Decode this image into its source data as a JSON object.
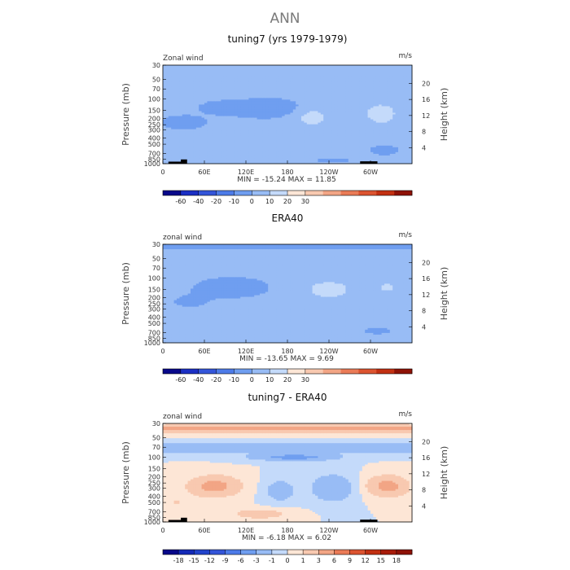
{
  "figure_title": "ANN",
  "chart_data": [
    {
      "type": "heatmap",
      "title": "tuning7 (yrs 1979-1979)",
      "variable_label": "Zonal wind",
      "units": "m/s",
      "xlabel": "",
      "ylabel": "Pressure (mb)",
      "y2label": "Height (km)",
      "xlim": [
        0,
        360
      ],
      "x_ticks": [
        "0",
        "60E",
        "120E",
        "180",
        "120W",
        "60W"
      ],
      "y_ticks": [
        "30",
        "50",
        "70",
        "100",
        "150",
        "200",
        "250",
        "300",
        "400",
        "500",
        "700",
        "850",
        "1000"
      ],
      "y_tick_values": [
        30,
        50,
        70,
        100,
        150,
        200,
        250,
        300,
        400,
        500,
        700,
        850,
        1000
      ],
      "height_ticks": [
        "4",
        "8",
        "12",
        "16",
        "20"
      ],
      "height_tick_values": [
        4,
        8,
        12,
        16,
        20
      ],
      "stats": "MIN = -15.24   MAX =  11.85",
      "min": -15.24,
      "max": 11.85,
      "colorbar_labels": [
        "-60",
        "-40",
        "-20",
        "-10",
        "0",
        "10",
        "20",
        "30"
      ],
      "colorbar_colors": [
        "#08088a",
        "#1b2fc4",
        "#3355d9",
        "#4d7be8",
        "#6f9ef0",
        "#98bcf5",
        "#c4dafa",
        "#fde6d6",
        "#f8c9b0",
        "#f2a585",
        "#ea7b57",
        "#dc5430",
        "#c23012",
        "#8e1206"
      ],
      "features": [
        {
          "lon": 150,
          "p": 140,
          "sx": 50,
          "sy": 0.28,
          "v": -11
        },
        {
          "lon": 85,
          "p": 135,
          "sx": 32,
          "sy": 0.22,
          "v": -5
        },
        {
          "lon": 30,
          "p": 230,
          "sx": 40,
          "sy": 0.3,
          "v": -4
        },
        {
          "lon": 215,
          "p": 190,
          "sx": 28,
          "sy": 0.4,
          "v": 12
        },
        {
          "lon": 315,
          "p": 170,
          "sx": 22,
          "sy": 0.35,
          "v": 17
        },
        {
          "lon": 145,
          "p": 720,
          "sx": 50,
          "sy": 0.18,
          "v": 4
        },
        {
          "lon": 245,
          "p": 880,
          "sx": 40,
          "sy": 0.12,
          "v": -3
        },
        {
          "lon": 320,
          "p": 620,
          "sx": 25,
          "sy": 0.2,
          "v": -4
        },
        {
          "lon": 260,
          "p": 45,
          "sx": 70,
          "sy": 0.35,
          "v": 3
        },
        {
          "lon": 60,
          "p": 45,
          "sx": 50,
          "sy": 0.4,
          "v": 2
        }
      ],
      "base_value": 2,
      "topo": [
        {
          "lon0": 8,
          "lon1": 30,
          "p": 930
        },
        {
          "lon0": 26,
          "lon1": 35,
          "p": 860
        },
        {
          "lon0": 285,
          "lon1": 310,
          "p": 920
        }
      ]
    },
    {
      "type": "heatmap",
      "title": "ERA40",
      "variable_label": "zonal wind",
      "units": "m/s",
      "xlabel": "",
      "ylabel": "Pressure (mb)",
      "y2label": "Height (km)",
      "xlim": [
        0,
        360
      ],
      "x_ticks": [
        "0",
        "60E",
        "120E",
        "180",
        "120W",
        "60W"
      ],
      "y_ticks": [
        "30",
        "50",
        "70",
        "100",
        "150",
        "200",
        "250",
        "300",
        "400",
        "500",
        "700",
        "850",
        "1000"
      ],
      "y_tick_values": [
        30,
        50,
        70,
        100,
        150,
        200,
        250,
        300,
        400,
        500,
        700,
        850,
        1000
      ],
      "height_ticks": [
        "4",
        "8",
        "12",
        "16",
        "20"
      ],
      "height_tick_values": [
        4,
        8,
        12,
        16,
        20
      ],
      "stats": "MIN = -13.65   MAX =   9.69",
      "min": -13.65,
      "max": 9.69,
      "colorbar_labels": [
        "-60",
        "-40",
        "-20",
        "-10",
        "0",
        "10",
        "20",
        "30"
      ],
      "colorbar_colors": [
        "#08088a",
        "#1b2fc4",
        "#3355d9",
        "#4d7be8",
        "#6f9ef0",
        "#98bcf5",
        "#c4dafa",
        "#fde6d6",
        "#f8c9b0",
        "#f2a585",
        "#ea7b57",
        "#dc5430",
        "#c23012",
        "#8e1206"
      ],
      "features": [
        {
          "lon": 100,
          "p": 140,
          "sx": 45,
          "sy": 0.3,
          "v": -9
        },
        {
          "lon": 40,
          "p": 230,
          "sx": 35,
          "sy": 0.3,
          "v": -3
        },
        {
          "lon": 240,
          "p": 150,
          "sx": 45,
          "sy": 0.45,
          "v": 11
        },
        {
          "lon": 325,
          "p": 140,
          "sx": 22,
          "sy": 0.3,
          "v": 9
        },
        {
          "lon": 140,
          "p": 700,
          "sx": 40,
          "sy": 0.15,
          "v": 4
        },
        {
          "lon": 310,
          "p": 650,
          "sx": 30,
          "sy": 0.18,
          "v": -3
        },
        {
          "lon": 180,
          "p": 32,
          "sx": 400,
          "sy": 0.1,
          "v": -5
        }
      ],
      "base_value": 2,
      "topo": []
    },
    {
      "type": "heatmap",
      "title": "tuning7 - ERA40",
      "variable_label": "zonal wind",
      "units": "m/s",
      "xlabel": "",
      "ylabel": "Pressure (mb)",
      "y2label": "Height (km)",
      "xlim": [
        0,
        360
      ],
      "x_ticks": [
        "0",
        "60E",
        "120E",
        "180",
        "120W",
        "60W"
      ],
      "y_ticks": [
        "30",
        "50",
        "70",
        "100",
        "150",
        "200",
        "250",
        "300",
        "400",
        "500",
        "700",
        "850",
        "1000"
      ],
      "y_tick_values": [
        30,
        50,
        70,
        100,
        150,
        200,
        250,
        300,
        400,
        500,
        700,
        850,
        1000
      ],
      "height_ticks": [
        "4",
        "8",
        "12",
        "16",
        "20"
      ],
      "height_tick_values": [
        4,
        8,
        12,
        16,
        20
      ],
      "stats": "MIN =  -6.18   MAX =   6.02",
      "min": -6.18,
      "max": 6.02,
      "colorbar_labels": [
        "-18",
        "-15",
        "-12",
        "-9",
        "-6",
        "-3",
        "-1",
        "0",
        "1",
        "3",
        "6",
        "9",
        "12",
        "15",
        "18"
      ],
      "colorbar_colors": [
        "#08088a",
        "#142ab8",
        "#2244cc",
        "#3355d9",
        "#4d7be8",
        "#6f9ef0",
        "#98bcf5",
        "#c4dafa",
        "#fde6d6",
        "#f8c9b0",
        "#f2a585",
        "#ea7b57",
        "#dc5430",
        "#c23012",
        "#a81c0a",
        "#8e1206"
      ],
      "features": [
        {
          "lon": 180,
          "p": 36,
          "sx": 400,
          "sy": 0.14,
          "v": 4
        },
        {
          "lon": 180,
          "p": 72,
          "sx": 400,
          "sy": 0.16,
          "v": -3
        },
        {
          "lon": 190,
          "p": 100,
          "sx": 60,
          "sy": 0.12,
          "v": -4
        },
        {
          "lon": 75,
          "p": 280,
          "sx": 35,
          "sy": 0.35,
          "v": 4
        },
        {
          "lon": 325,
          "p": 280,
          "sx": 28,
          "sy": 0.35,
          "v": 4
        },
        {
          "lon": 245,
          "p": 300,
          "sx": 28,
          "sy": 0.45,
          "v": -3
        },
        {
          "lon": 170,
          "p": 330,
          "sx": 22,
          "sy": 0.4,
          "v": -2
        },
        {
          "lon": 140,
          "p": 750,
          "sx": 40,
          "sy": 0.18,
          "v": 2
        },
        {
          "lon": 20,
          "p": 500,
          "sx": 25,
          "sy": 0.3,
          "v": 1
        }
      ],
      "base_value": 0,
      "topo": [
        {
          "lon0": 8,
          "lon1": 30,
          "p": 930
        },
        {
          "lon0": 26,
          "lon1": 35,
          "p": 860
        },
        {
          "lon0": 285,
          "lon1": 310,
          "p": 920
        }
      ]
    }
  ]
}
